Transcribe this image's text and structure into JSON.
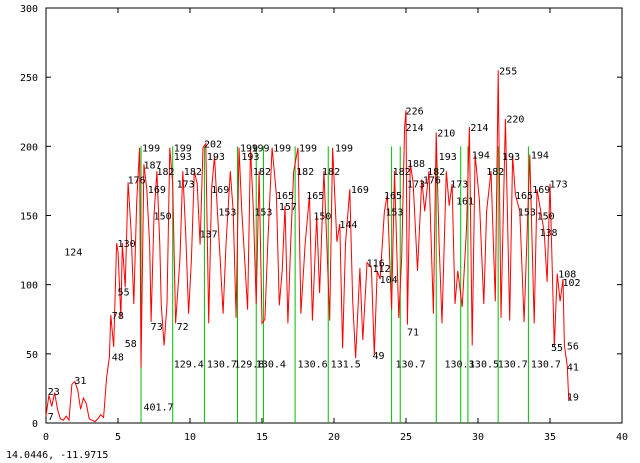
{
  "cursor_readout": "14.0446, -11.9715",
  "colors": {
    "trace": "#ff0000",
    "markers": "#00c000",
    "axes": "#000000",
    "background": "#ffffff"
  },
  "chart_data": {
    "type": "line",
    "title": "",
    "xlabel": "",
    "ylabel": "",
    "xlim": [
      0,
      40
    ],
    "ylim": [
      0,
      300
    ],
    "grid": false,
    "x_ticks": [
      "0",
      "5",
      "10",
      "15",
      "20",
      "25",
      "30",
      "35",
      "40"
    ],
    "y_ticks": [
      "0",
      "50",
      "100",
      "150",
      "200",
      "250",
      "300"
    ],
    "x_tick_values": [
      0,
      5,
      10,
      15,
      20,
      25,
      30,
      35,
      40
    ],
    "y_tick_values": [
      0,
      50,
      100,
      150,
      200,
      250,
      300
    ],
    "series": [
      {
        "points": [
          [
            0.0,
            5
          ],
          [
            0.2,
            20
          ],
          [
            0.4,
            12
          ],
          [
            0.6,
            22
          ],
          [
            0.8,
            10
          ],
          [
            1.0,
            3
          ],
          [
            1.2,
            2
          ],
          [
            1.4,
            5
          ],
          [
            1.6,
            2
          ],
          [
            1.8,
            28
          ],
          [
            2.0,
            30
          ],
          [
            2.2,
            24
          ],
          [
            2.4,
            10
          ],
          [
            2.6,
            18
          ],
          [
            2.8,
            14
          ],
          [
            3.0,
            3
          ],
          [
            3.2,
            2
          ],
          [
            3.4,
            1
          ],
          [
            3.6,
            3
          ],
          [
            3.8,
            6
          ],
          [
            4.0,
            4
          ],
          [
            4.2,
            32
          ],
          [
            4.4,
            48
          ],
          [
            4.5,
            78
          ],
          [
            4.7,
            55
          ],
          [
            4.9,
            130
          ],
          [
            5.0,
            124
          ],
          [
            5.2,
            76
          ],
          [
            5.3,
            130
          ],
          [
            5.5,
            98
          ],
          [
            5.7,
            174
          ],
          [
            5.9,
            140
          ],
          [
            6.1,
            86
          ],
          [
            6.3,
            160
          ],
          [
            6.5,
            199
          ],
          [
            6.6,
            40
          ],
          [
            6.8,
            187
          ],
          [
            7.0,
            169
          ],
          [
            7.2,
            128
          ],
          [
            7.3,
            73
          ],
          [
            7.5,
            150
          ],
          [
            7.7,
            182
          ],
          [
            7.9,
            129
          ],
          [
            8.0,
            86
          ],
          [
            8.2,
            56
          ],
          [
            8.4,
            86
          ],
          [
            8.6,
            199
          ],
          [
            8.8,
            173
          ],
          [
            9.0,
            72
          ],
          [
            9.3,
            118
          ],
          [
            9.5,
            182
          ],
          [
            9.7,
            137
          ],
          [
            9.9,
            79
          ],
          [
            10.1,
            118
          ],
          [
            10.3,
            182
          ],
          [
            10.5,
            173
          ],
          [
            10.7,
            129
          ],
          [
            10.9,
            199
          ],
          [
            11.1,
            202
          ],
          [
            11.3,
            72
          ],
          [
            11.5,
            169
          ],
          [
            11.7,
            193
          ],
          [
            11.9,
            153
          ],
          [
            12.1,
            118
          ],
          [
            12.3,
            79
          ],
          [
            12.5,
            129
          ],
          [
            12.8,
            182
          ],
          [
            13.0,
            153
          ],
          [
            13.2,
            76
          ],
          [
            13.4,
            199
          ],
          [
            13.6,
            153
          ],
          [
            13.8,
            118
          ],
          [
            14.0,
            82
          ],
          [
            14.2,
            199
          ],
          [
            14.4,
            153
          ],
          [
            14.6,
            86
          ],
          [
            14.8,
            182
          ],
          [
            15.0,
            72
          ],
          [
            15.2,
            75
          ],
          [
            15.4,
            130
          ],
          [
            15.7,
            199
          ],
          [
            16.0,
            165
          ],
          [
            16.2,
            85
          ],
          [
            16.4,
            110
          ],
          [
            16.6,
            157
          ],
          [
            16.8,
            72
          ],
          [
            17.0,
            132
          ],
          [
            17.2,
            182
          ],
          [
            17.5,
            199
          ],
          [
            17.7,
            79
          ],
          [
            18.0,
            130
          ],
          [
            18.3,
            165
          ],
          [
            18.5,
            74
          ],
          [
            18.8,
            150
          ],
          [
            19.0,
            94
          ],
          [
            19.3,
            182
          ],
          [
            19.5,
            130
          ],
          [
            19.7,
            74
          ],
          [
            19.9,
            199
          ],
          [
            20.2,
            131
          ],
          [
            20.4,
            144
          ],
          [
            20.6,
            54
          ],
          [
            20.8,
            130
          ],
          [
            21.1,
            169
          ],
          [
            21.3,
            88
          ],
          [
            21.5,
            47
          ],
          [
            21.8,
            112
          ],
          [
            22.0,
            60
          ],
          [
            22.3,
            116
          ],
          [
            22.6,
            112
          ],
          [
            22.8,
            49
          ],
          [
            23.0,
            110
          ],
          [
            23.2,
            104
          ],
          [
            23.5,
            153
          ],
          [
            23.7,
            165
          ],
          [
            24.0,
            82
          ],
          [
            24.2,
            182
          ],
          [
            24.4,
            110
          ],
          [
            24.5,
            76
          ],
          [
            24.7,
            120
          ],
          [
            24.9,
            214
          ],
          [
            25.0,
            226
          ],
          [
            25.1,
            71
          ],
          [
            25.3,
            188
          ],
          [
            25.5,
            173
          ],
          [
            25.8,
            110
          ],
          [
            26.1,
            176
          ],
          [
            26.3,
            153
          ],
          [
            26.6,
            182
          ],
          [
            26.9,
            79
          ],
          [
            27.1,
            210
          ],
          [
            27.3,
            130
          ],
          [
            27.5,
            72
          ],
          [
            27.8,
            182
          ],
          [
            28.0,
            157
          ],
          [
            28.2,
            173
          ],
          [
            28.4,
            86
          ],
          [
            28.6,
            110
          ],
          [
            28.9,
            84
          ],
          [
            29.2,
            140
          ],
          [
            29.4,
            214
          ],
          [
            29.6,
            56
          ],
          [
            29.8,
            194
          ],
          [
            30.1,
            161
          ],
          [
            30.4,
            86
          ],
          [
            30.6,
            153
          ],
          [
            30.9,
            182
          ],
          [
            31.2,
            88
          ],
          [
            31.4,
            255
          ],
          [
            31.6,
            76
          ],
          [
            31.9,
            220
          ],
          [
            32.2,
            74
          ],
          [
            32.4,
            193
          ],
          [
            32.6,
            165
          ],
          [
            32.9,
            153
          ],
          [
            33.2,
            73
          ],
          [
            33.6,
            194
          ],
          [
            33.9,
            72
          ],
          [
            34.1,
            169
          ],
          [
            34.4,
            150
          ],
          [
            34.6,
            138
          ],
          [
            34.8,
            102
          ],
          [
            35.0,
            173
          ],
          [
            35.3,
            55
          ],
          [
            35.5,
            108
          ],
          [
            35.7,
            88
          ],
          [
            35.9,
            104
          ],
          [
            36.0,
            56
          ],
          [
            36.2,
            41
          ],
          [
            36.3,
            17
          ],
          [
            36.4,
            19
          ]
        ]
      }
    ],
    "peak_labels": [
      {
        "text": "23",
        "x": 0.05,
        "y": 23
      },
      {
        "text": "7",
        "x": 0.05,
        "y": 5
      },
      {
        "text": "31",
        "x": 1.9,
        "y": 31
      },
      {
        "text": "124",
        "x": 1.2,
        "y": 124
      },
      {
        "text": "48",
        "x": 4.5,
        "y": 48
      },
      {
        "text": "78",
        "x": 4.5,
        "y": 78
      },
      {
        "text": "55",
        "x": 4.9,
        "y": 95
      },
      {
        "text": "130",
        "x": 4.9,
        "y": 130
      },
      {
        "text": "58",
        "x": 5.4,
        "y": 58
      },
      {
        "text": "176",
        "x": 5.6,
        "y": 176
      },
      {
        "text": "199",
        "x": 6.6,
        "y": 199
      },
      {
        "text": "187",
        "x": 6.7,
        "y": 187
      },
      {
        "text": "169",
        "x": 7.0,
        "y": 169
      },
      {
        "text": "150",
        "x": 7.4,
        "y": 150
      },
      {
        "text": "73",
        "x": 7.2,
        "y": 70
      },
      {
        "text": "401.7",
        "x": 6.7,
        "y": 12
      },
      {
        "text": "182",
        "x": 7.6,
        "y": 182
      },
      {
        "text": "199",
        "x": 8.8,
        "y": 199
      },
      {
        "text": "193",
        "x": 8.8,
        "y": 193
      },
      {
        "text": "173",
        "x": 9.0,
        "y": 173
      },
      {
        "text": "72",
        "x": 9.0,
        "y": 70
      },
      {
        "text": "129.4",
        "x": 8.8,
        "y": 43
      },
      {
        "text": "182",
        "x": 9.5,
        "y": 182
      },
      {
        "text": "137",
        "x": 10.6,
        "y": 137
      },
      {
        "text": "202",
        "x": 10.9,
        "y": 202
      },
      {
        "text": "193",
        "x": 11.1,
        "y": 193
      },
      {
        "text": "169",
        "x": 11.4,
        "y": 169
      },
      {
        "text": "130.7",
        "x": 11.1,
        "y": 43
      },
      {
        "text": "153",
        "x": 11.9,
        "y": 153
      },
      {
        "text": "193",
        "x": 13.5,
        "y": 193
      },
      {
        "text": "199",
        "x": 13.4,
        "y": 199
      },
      {
        "text": "129.8",
        "x": 13.0,
        "y": 43
      },
      {
        "text": "199",
        "x": 14.2,
        "y": 199
      },
      {
        "text": "182",
        "x": 14.3,
        "y": 182
      },
      {
        "text": "153",
        "x": 14.4,
        "y": 153
      },
      {
        "text": "130.4",
        "x": 14.5,
        "y": 43
      },
      {
        "text": "199",
        "x": 15.7,
        "y": 199
      },
      {
        "text": "165",
        "x": 15.9,
        "y": 165
      },
      {
        "text": "157",
        "x": 16.1,
        "y": 157
      },
      {
        "text": "199",
        "x": 17.5,
        "y": 199
      },
      {
        "text": "182",
        "x": 17.3,
        "y": 182
      },
      {
        "text": "165",
        "x": 18.0,
        "y": 165
      },
      {
        "text": "150",
        "x": 18.5,
        "y": 150
      },
      {
        "text": "130.6",
        "x": 17.4,
        "y": 43
      },
      {
        "text": "182",
        "x": 19.1,
        "y": 182
      },
      {
        "text": "199",
        "x": 20.0,
        "y": 199
      },
      {
        "text": "144",
        "x": 20.3,
        "y": 144
      },
      {
        "text": "131.5",
        "x": 19.7,
        "y": 43
      },
      {
        "text": "169",
        "x": 21.1,
        "y": 169
      },
      {
        "text": "116",
        "x": 22.2,
        "y": 116
      },
      {
        "text": "112",
        "x": 22.6,
        "y": 112
      },
      {
        "text": "104",
        "x": 23.1,
        "y": 104
      },
      {
        "text": "49",
        "x": 22.6,
        "y": 49
      },
      {
        "text": "165",
        "x": 23.4,
        "y": 165
      },
      {
        "text": "153",
        "x": 23.5,
        "y": 153
      },
      {
        "text": "182",
        "x": 24.0,
        "y": 182
      },
      {
        "text": "226",
        "x": 24.9,
        "y": 226
      },
      {
        "text": "214",
        "x": 24.9,
        "y": 214
      },
      {
        "text": "188",
        "x": 25.0,
        "y": 188
      },
      {
        "text": "173",
        "x": 25.0,
        "y": 173
      },
      {
        "text": "71",
        "x": 25.0,
        "y": 66
      },
      {
        "text": "130.7",
        "x": 24.2,
        "y": 43
      },
      {
        "text": "176",
        "x": 26.1,
        "y": 176
      },
      {
        "text": "182",
        "x": 26.4,
        "y": 182
      },
      {
        "text": "210",
        "x": 27.1,
        "y": 210
      },
      {
        "text": "193",
        "x": 27.2,
        "y": 193
      },
      {
        "text": "173",
        "x": 28.0,
        "y": 173
      },
      {
        "text": "161",
        "x": 28.4,
        "y": 161
      },
      {
        "text": "130.3",
        "x": 27.6,
        "y": 43
      },
      {
        "text": "214",
        "x": 29.4,
        "y": 214
      },
      {
        "text": "194",
        "x": 29.5,
        "y": 194
      },
      {
        "text": "130.5",
        "x": 29.3,
        "y": 43
      },
      {
        "text": "182",
        "x": 30.5,
        "y": 182
      },
      {
        "text": "255",
        "x": 31.4,
        "y": 255
      },
      {
        "text": "220",
        "x": 31.9,
        "y": 220
      },
      {
        "text": "193",
        "x": 31.6,
        "y": 193
      },
      {
        "text": "165",
        "x": 32.5,
        "y": 165
      },
      {
        "text": "153",
        "x": 32.7,
        "y": 153
      },
      {
        "text": "130.7",
        "x": 31.3,
        "y": 43
      },
      {
        "text": "194",
        "x": 33.6,
        "y": 194
      },
      {
        "text": "169",
        "x": 33.7,
        "y": 169
      },
      {
        "text": "173",
        "x": 34.9,
        "y": 173
      },
      {
        "text": "150",
        "x": 34.0,
        "y": 150
      },
      {
        "text": "138",
        "x": 34.2,
        "y": 138
      },
      {
        "text": "130.7",
        "x": 33.6,
        "y": 43
      },
      {
        "text": "102",
        "x": 35.8,
        "y": 102
      },
      {
        "text": "108",
        "x": 35.5,
        "y": 108
      },
      {
        "text": "55",
        "x": 35.0,
        "y": 55
      },
      {
        "text": "56",
        "x": 36.1,
        "y": 56
      },
      {
        "text": "41",
        "x": 36.1,
        "y": 41
      },
      {
        "text": "19",
        "x": 36.1,
        "y": 19
      }
    ],
    "marker_lines_x": [
      6.6,
      8.8,
      11.0,
      13.3,
      14.6,
      15.1,
      17.3,
      19.6,
      24.0,
      24.6,
      27.1,
      28.8,
      29.3,
      31.4,
      33.5
    ]
  }
}
